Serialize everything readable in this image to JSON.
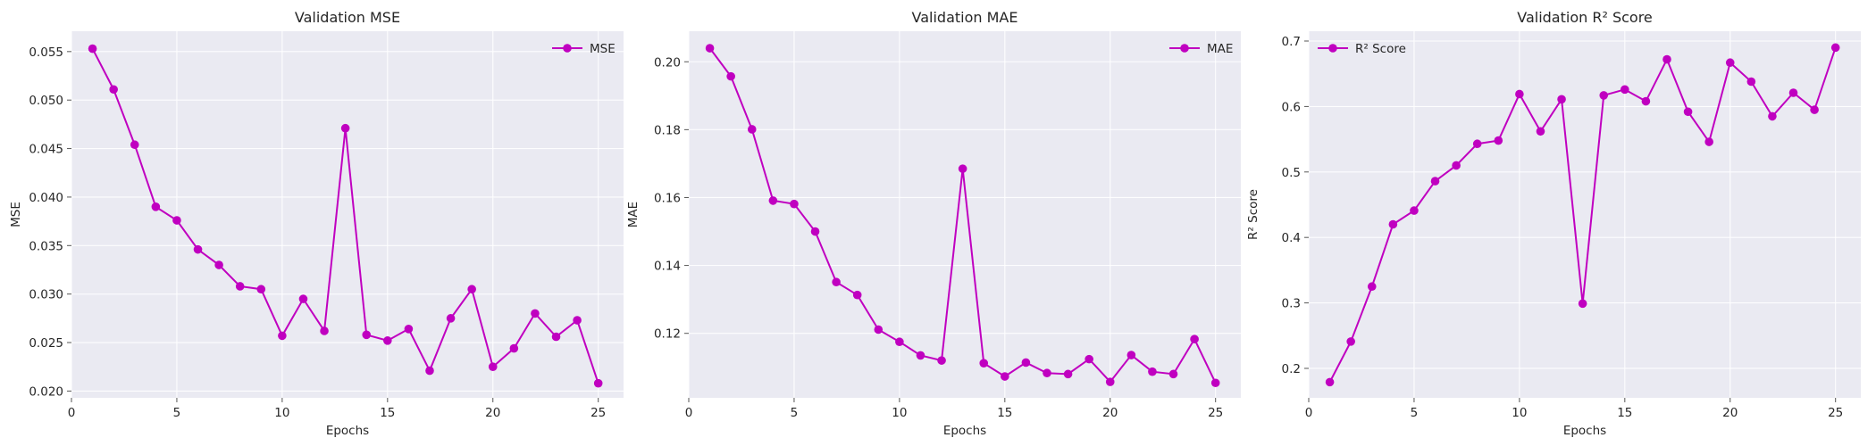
{
  "chart_data": [
    {
      "type": "line",
      "title": "Validation MSE",
      "xlabel": "Epochs",
      "ylabel": "MSE",
      "xlim": [
        0,
        26.2
      ],
      "ylim": [
        0.0193,
        0.0571
      ],
      "xticks": [
        0,
        5,
        10,
        15,
        20,
        25
      ],
      "xtick_labels": [
        "0",
        "5",
        "10",
        "15",
        "20",
        "25"
      ],
      "yticks": [
        0.02,
        0.025,
        0.03,
        0.035,
        0.04,
        0.045,
        0.05,
        0.055
      ],
      "ytick_labels": [
        "0.020",
        "0.025",
        "0.030",
        "0.035",
        "0.040",
        "0.045",
        "0.050",
        "0.055"
      ],
      "grid": true,
      "legend_position": "top-right",
      "series": [
        {
          "name": "MSE",
          "color": "#c000c0",
          "x": [
            1,
            2,
            3,
            4,
            5,
            6,
            7,
            8,
            9,
            10,
            11,
            12,
            13,
            14,
            15,
            16,
            17,
            18,
            19,
            20,
            21,
            22,
            23,
            24,
            25
          ],
          "y": [
            0.0553,
            0.0511,
            0.0454,
            0.039,
            0.0376,
            0.0346,
            0.033,
            0.0308,
            0.0305,
            0.0257,
            0.0295,
            0.0262,
            0.0471,
            0.0258,
            0.0252,
            0.0264,
            0.0221,
            0.0275,
            0.0305,
            0.0225,
            0.0244,
            0.028,
            0.0256,
            0.0273,
            0.0208
          ]
        }
      ]
    },
    {
      "type": "line",
      "title": "Validation MAE",
      "xlabel": "Epochs",
      "ylabel": "MAE",
      "xlim": [
        0,
        26.2
      ],
      "ylim": [
        0.101,
        0.209
      ],
      "xticks": [
        0,
        5,
        10,
        15,
        20,
        25
      ],
      "xtick_labels": [
        "0",
        "5",
        "10",
        "15",
        "20",
        "25"
      ],
      "yticks": [
        0.12,
        0.14,
        0.16,
        0.18,
        0.2
      ],
      "ytick_labels": [
        "0.12",
        "0.14",
        "0.16",
        "0.18",
        "0.20"
      ],
      "grid": true,
      "legend_position": "top-right",
      "series": [
        {
          "name": "MAE",
          "color": "#c000c0",
          "x": [
            1,
            2,
            3,
            4,
            5,
            6,
            7,
            8,
            9,
            10,
            11,
            12,
            13,
            14,
            15,
            16,
            17,
            18,
            19,
            20,
            21,
            22,
            23,
            24,
            25
          ],
          "y": [
            0.204,
            0.1957,
            0.1801,
            0.1591,
            0.1581,
            0.15,
            0.1351,
            0.1313,
            0.1211,
            0.1175,
            0.1135,
            0.112,
            0.1685,
            0.1112,
            0.1073,
            0.1114,
            0.1083,
            0.108,
            0.1124,
            0.1057,
            0.1136,
            0.1087,
            0.108,
            0.1183,
            0.1054
          ]
        }
      ]
    },
    {
      "type": "line",
      "title": "Validation R² Score",
      "xlabel": "Epochs",
      "ylabel": "R² Score",
      "xlim": [
        0,
        26.2
      ],
      "ylim": [
        0.155,
        0.715
      ],
      "xticks": [
        0,
        5,
        10,
        15,
        20,
        25
      ],
      "xtick_labels": [
        "0",
        "5",
        "10",
        "15",
        "20",
        "25"
      ],
      "yticks": [
        0.2,
        0.3,
        0.4,
        0.5,
        0.6,
        0.7
      ],
      "ytick_labels": [
        "0.2",
        "0.3",
        "0.4",
        "0.5",
        "0.6",
        "0.7"
      ],
      "grid": true,
      "legend_position": "top-left",
      "series": [
        {
          "name": "R² Score",
          "color": "#c000c0",
          "x": [
            1,
            2,
            3,
            4,
            5,
            6,
            7,
            8,
            9,
            10,
            11,
            12,
            13,
            14,
            15,
            16,
            17,
            18,
            19,
            20,
            21,
            22,
            23,
            24,
            25
          ],
          "y": [
            0.179,
            0.241,
            0.325,
            0.42,
            0.441,
            0.486,
            0.51,
            0.543,
            0.548,
            0.619,
            0.562,
            0.611,
            0.299,
            0.617,
            0.626,
            0.608,
            0.672,
            0.592,
            0.546,
            0.667,
            0.638,
            0.585,
            0.621,
            0.595,
            0.69
          ]
        }
      ]
    }
  ],
  "colors": {
    "plot_background": "#eaeaf2",
    "line": "#c000c0"
  }
}
